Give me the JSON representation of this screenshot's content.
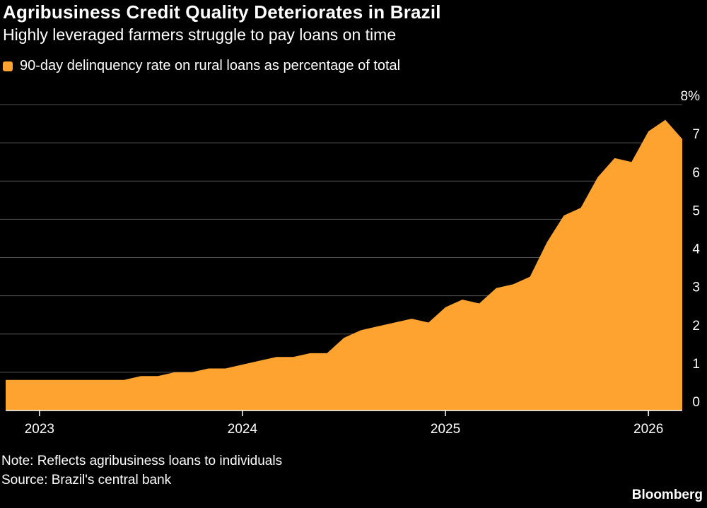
{
  "header": {
    "title": "Agribusiness Credit Quality Deteriorates in Brazil",
    "subtitle": "Highly leveraged farmers struggle to pay loans on time"
  },
  "footer": {
    "note": "Note: Reflects agribusiness loans to individuals",
    "source": "Source: Brazil's central bank",
    "brand": "Bloomberg"
  },
  "colors": {
    "series": "#FFA330",
    "background": "#000000",
    "grid": "#555555"
  },
  "chart_data": {
    "type": "area",
    "title": "Agribusiness Credit Quality Deteriorates in Brazil",
    "subtitle": "Highly leveraged farmers struggle to pay loans on time",
    "xlabel": "",
    "ylabel": "",
    "ylim": [
      0,
      8
    ],
    "xlim": [
      "2022-11",
      "2026-03"
    ],
    "y_ticks": [
      "0",
      "1",
      "2",
      "3",
      "4",
      "5",
      "6",
      "7",
      "8%"
    ],
    "x_ticks": [
      "2023",
      "2024",
      "2025",
      "2026"
    ],
    "grid": true,
    "legend_position": "top-left",
    "series": [
      {
        "name": "90-day delinquency rate on rural loans as percentage of total",
        "x": [
          "2022-11",
          "2022-12",
          "2023-01",
          "2023-02",
          "2023-03",
          "2023-04",
          "2023-05",
          "2023-06",
          "2023-07",
          "2023-08",
          "2023-09",
          "2023-10",
          "2023-11",
          "2023-12",
          "2024-01",
          "2024-02",
          "2024-03",
          "2024-04",
          "2024-05",
          "2024-06",
          "2024-07",
          "2024-08",
          "2024-09",
          "2024-10",
          "2024-11",
          "2024-12",
          "2025-01",
          "2025-02",
          "2025-03",
          "2025-04",
          "2025-05",
          "2025-06",
          "2025-07",
          "2025-08",
          "2025-09",
          "2025-10",
          "2025-11",
          "2025-12",
          "2026-01",
          "2026-02",
          "2026-03"
        ],
        "values": [
          0.8,
          0.8,
          0.8,
          0.8,
          0.8,
          0.8,
          0.8,
          0.8,
          0.9,
          0.9,
          1.0,
          1.0,
          1.1,
          1.1,
          1.2,
          1.3,
          1.4,
          1.4,
          1.5,
          1.5,
          1.9,
          2.1,
          2.2,
          2.3,
          2.4,
          2.3,
          2.7,
          2.9,
          2.8,
          3.2,
          3.3,
          3.5,
          4.4,
          5.1,
          5.3,
          6.1,
          6.6,
          6.5,
          7.3,
          7.6,
          7.1
        ]
      }
    ]
  }
}
